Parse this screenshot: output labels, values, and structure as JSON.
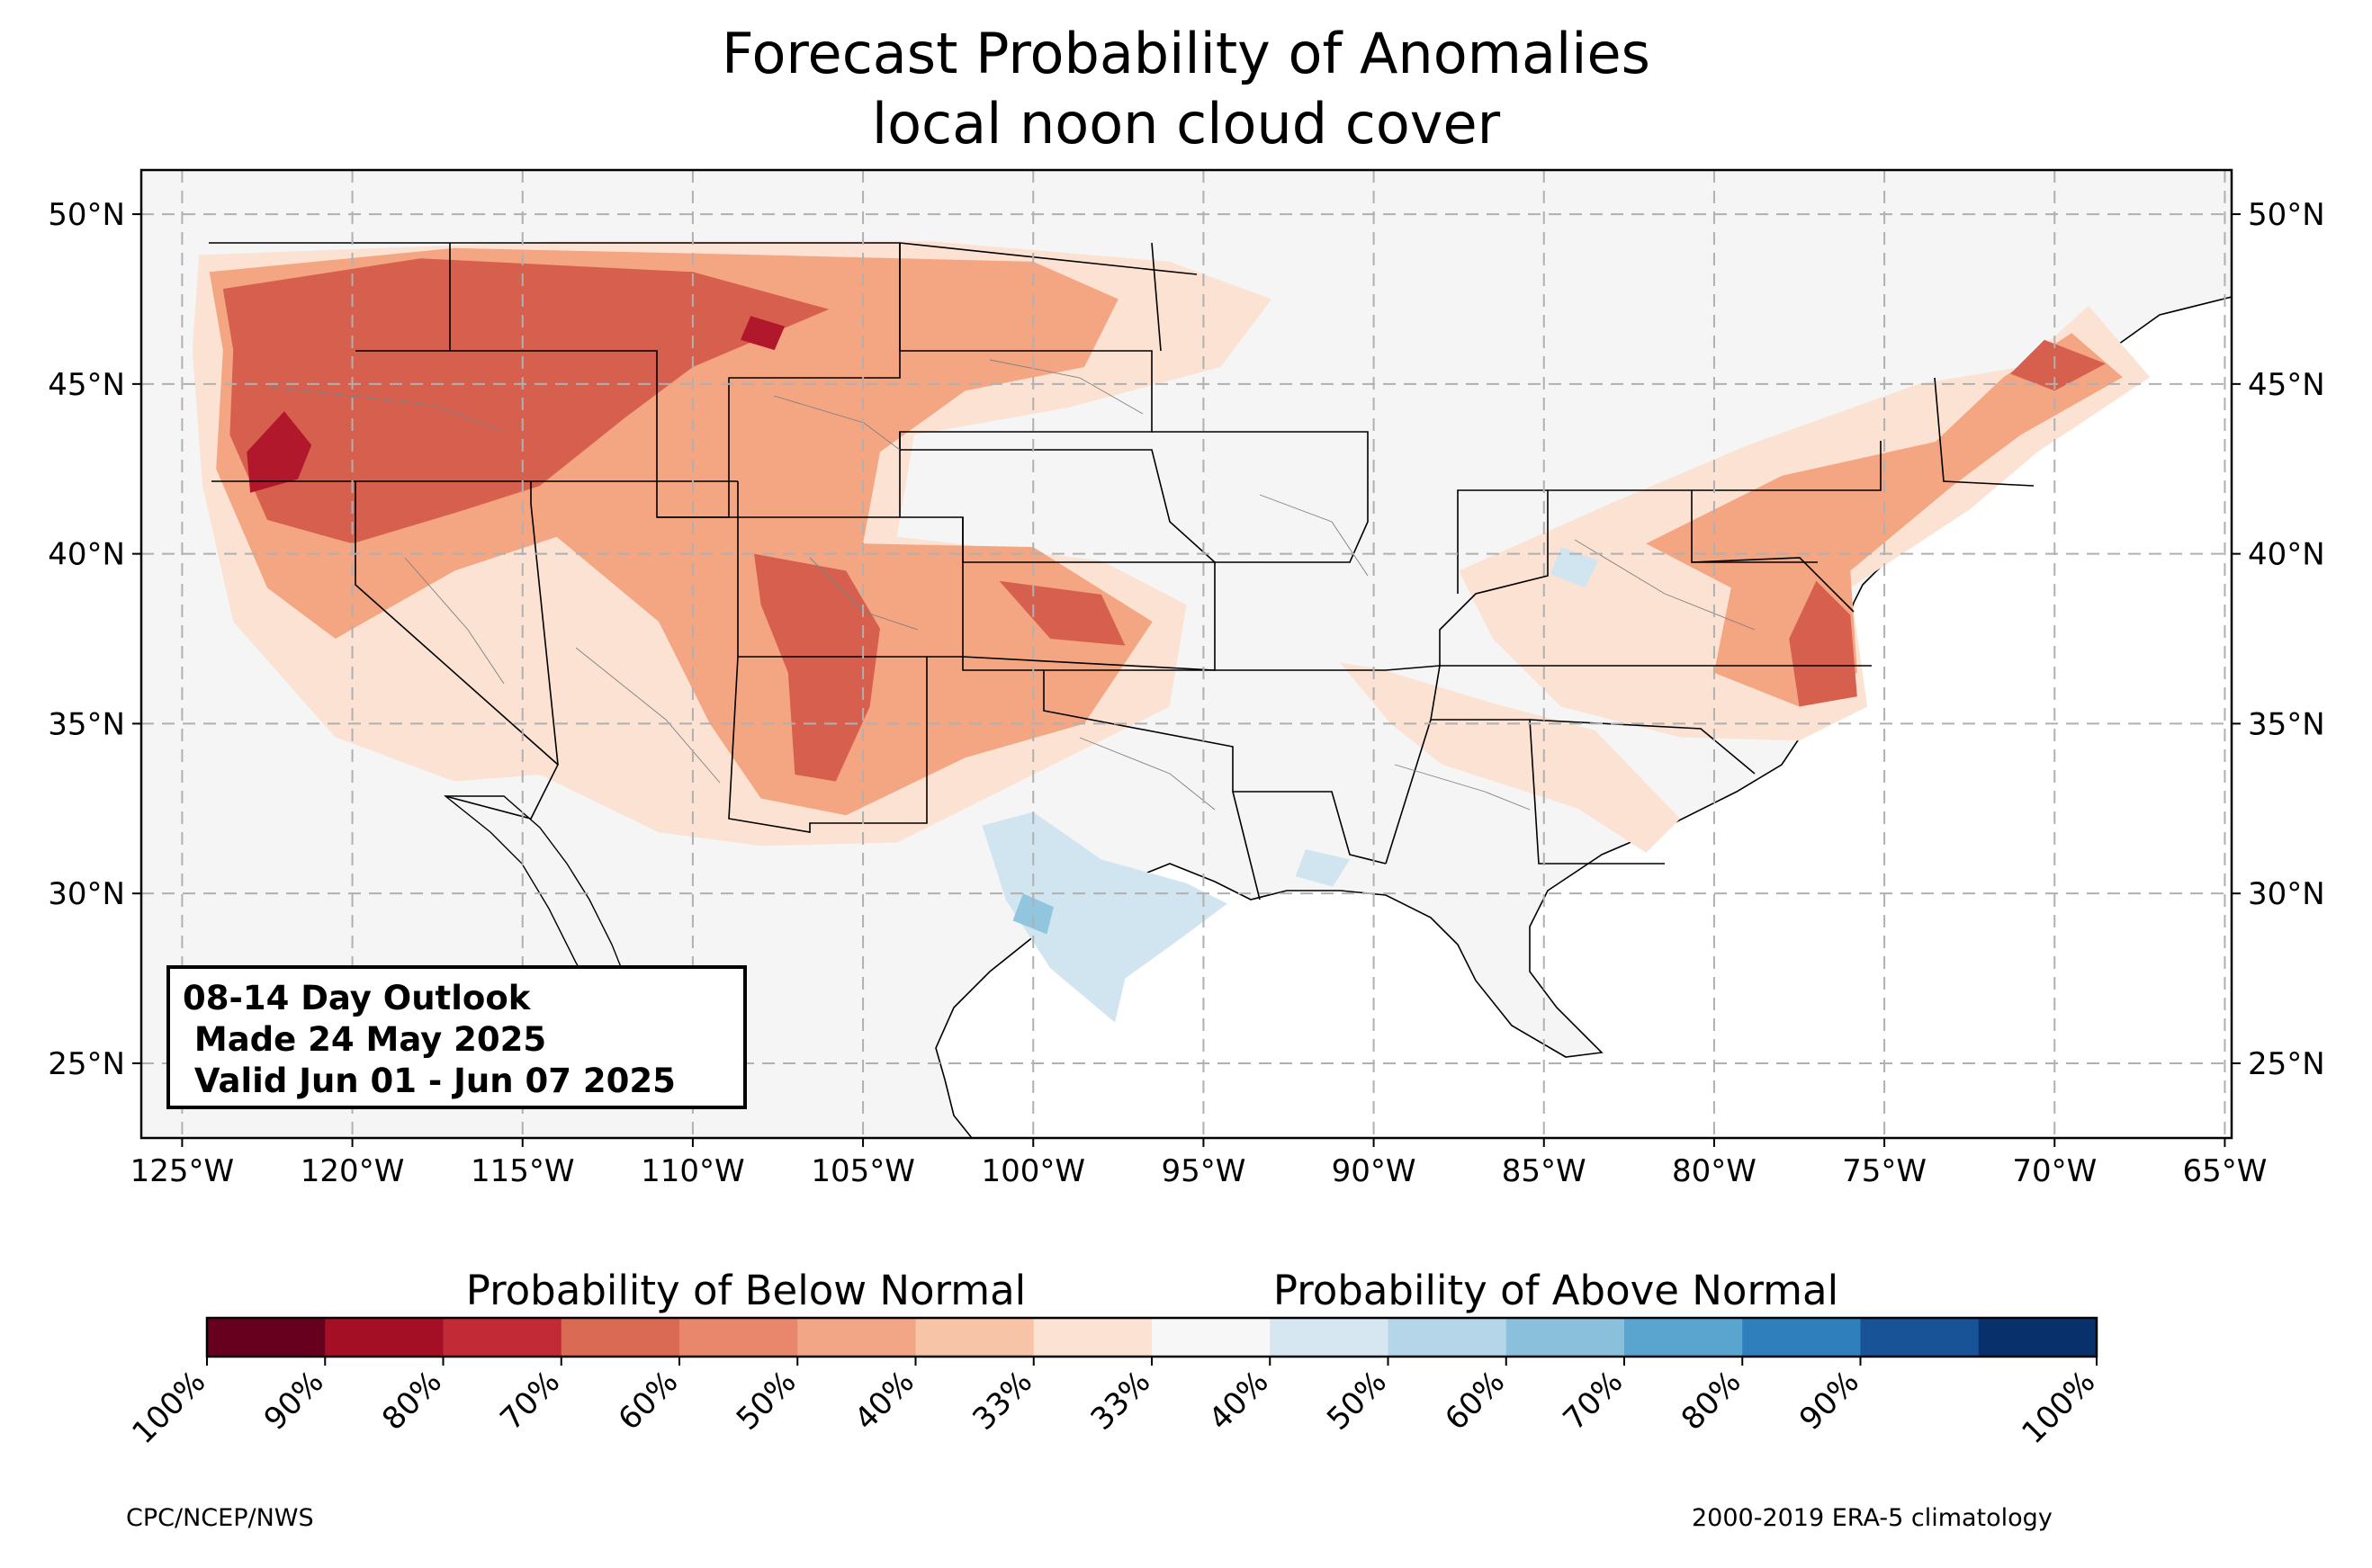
{
  "title": {
    "line1": "Forecast Probability of Anomalies",
    "line2": "local noon cloud cover"
  },
  "outlook": {
    "line1": "08-14 Day Outlook",
    "line2": " Made 24 May 2025",
    "line3": " Valid Jun 01 - Jun 07 2025"
  },
  "map": {
    "lon_range": [
      -126.2,
      -64.8
    ],
    "lat_range": [
      22.8,
      51.3
    ],
    "lon_ticks": [
      {
        "value": -125,
        "label": "125°W"
      },
      {
        "value": -120,
        "label": "120°W"
      },
      {
        "value": -115,
        "label": "115°W"
      },
      {
        "value": -110,
        "label": "110°W"
      },
      {
        "value": -105,
        "label": "105°W"
      },
      {
        "value": -100,
        "label": "100°W"
      },
      {
        "value": -95,
        "label": "95°W"
      },
      {
        "value": -90,
        "label": "90°W"
      },
      {
        "value": -85,
        "label": "85°W"
      },
      {
        "value": -80,
        "label": "80°W"
      },
      {
        "value": -75,
        "label": "75°W"
      },
      {
        "value": -70,
        "label": "70°W"
      },
      {
        "value": -65,
        "label": "65°W"
      }
    ],
    "lat_ticks": [
      {
        "value": 50,
        "label": "50°N"
      },
      {
        "value": 45,
        "label": "45°N"
      },
      {
        "value": 40,
        "label": "40°N"
      },
      {
        "value": 35,
        "label": "35°N"
      },
      {
        "value": 30,
        "label": "30°N"
      },
      {
        "value": 25,
        "label": "25°N"
      }
    ],
    "gridlines": true,
    "land_color": "#f5f5f5",
    "probability_regions": [
      {
        "category": "below",
        "level": "40",
        "color": "#fbe2d3",
        "polygon": [
          [
            -124.5,
            48.8
          ],
          [
            -114,
            49.2
          ],
          [
            -103,
            49.2
          ],
          [
            -96,
            48.6
          ],
          [
            -93,
            47.5
          ],
          [
            -94.5,
            45.5
          ],
          [
            -99,
            44.3
          ],
          [
            -103.5,
            43.5
          ],
          [
            -104,
            40.5
          ],
          [
            -98,
            39.8
          ],
          [
            -95.5,
            38.5
          ],
          [
            -96,
            35.5
          ],
          [
            -100,
            33.5
          ],
          [
            -104,
            31.5
          ],
          [
            -108,
            31.4
          ],
          [
            -111,
            31.8
          ],
          [
            -114.5,
            33.5
          ],
          [
            -117,
            33.3
          ],
          [
            -120.5,
            34.6
          ],
          [
            -123.5,
            38
          ],
          [
            -124.4,
            42
          ],
          [
            -124.7,
            46
          ]
        ]
      },
      {
        "category": "below",
        "level": "40",
        "color": "#fbe2d3",
        "polygon": [
          [
            -69,
            47.3
          ],
          [
            -67.2,
            45.2
          ],
          [
            -70.5,
            43
          ],
          [
            -72.5,
            41.3
          ],
          [
            -76,
            39
          ],
          [
            -75.5,
            35.5
          ],
          [
            -77.5,
            34.5
          ],
          [
            -81,
            34.6
          ],
          [
            -84.5,
            35.5
          ],
          [
            -86.5,
            37.5
          ],
          [
            -87.5,
            39.5
          ],
          [
            -83,
            41.5
          ],
          [
            -79,
            43.2
          ],
          [
            -74,
            45
          ],
          [
            -71,
            45.5
          ]
        ]
      },
      {
        "category": "below",
        "level": "40",
        "color": "#fbe2d3",
        "polygon": [
          [
            -91,
            36.8
          ],
          [
            -89.5,
            35
          ],
          [
            -88,
            33.8
          ],
          [
            -84,
            32.5
          ],
          [
            -82,
            31.2
          ],
          [
            -81,
            32.2
          ],
          [
            -83.5,
            34.8
          ],
          [
            -86.5,
            35.6
          ],
          [
            -89.8,
            36.6
          ]
        ]
      },
      {
        "category": "below",
        "level": "50",
        "color": "#f4a582",
        "polygon": [
          [
            -124.2,
            48.3
          ],
          [
            -117,
            49
          ],
          [
            -108,
            48.8
          ],
          [
            -100,
            48.6
          ],
          [
            -97.5,
            47.5
          ],
          [
            -98.5,
            45.5
          ],
          [
            -102,
            44.8
          ],
          [
            -104.5,
            43
          ],
          [
            -105,
            40.3
          ],
          [
            -100,
            40.2
          ],
          [
            -96.5,
            38
          ],
          [
            -98.5,
            35
          ],
          [
            -102,
            34
          ],
          [
            -105.5,
            32.3
          ],
          [
            -108,
            32.8
          ],
          [
            -109.5,
            35
          ],
          [
            -111,
            38
          ],
          [
            -114,
            40.5
          ],
          [
            -117,
            39.5
          ],
          [
            -120.5,
            37.5
          ],
          [
            -122.5,
            39
          ],
          [
            -124,
            42.5
          ],
          [
            -123.8,
            46
          ]
        ]
      },
      {
        "category": "below",
        "level": "50",
        "color": "#f4a582",
        "polygon": [
          [
            -69.5,
            46.5
          ],
          [
            -68,
            45.2
          ],
          [
            -71,
            43.5
          ],
          [
            -73,
            42
          ],
          [
            -76,
            39.5
          ],
          [
            -75.8,
            36.5
          ],
          [
            -77.5,
            35.5
          ],
          [
            -80,
            36.5
          ],
          [
            -79.5,
            39
          ],
          [
            -82,
            40.3
          ],
          [
            -78,
            42.3
          ],
          [
            -73.5,
            43.3
          ],
          [
            -71.5,
            45.2
          ]
        ]
      },
      {
        "category": "below",
        "level": "60",
        "color": "#d6604d",
        "polygon": [
          [
            -123.8,
            47.8
          ],
          [
            -118,
            48.7
          ],
          [
            -110,
            48.3
          ],
          [
            -106,
            47.2
          ],
          [
            -110,
            45.5
          ],
          [
            -112,
            44
          ],
          [
            -114.5,
            42
          ],
          [
            -117,
            41.2
          ],
          [
            -120,
            40.3
          ],
          [
            -122.5,
            41
          ],
          [
            -123.6,
            43.5
          ],
          [
            -123.5,
            46
          ]
        ]
      },
      {
        "category": "below",
        "level": "60",
        "color": "#d6604d",
        "polygon": [
          [
            -108.2,
            40
          ],
          [
            -105.5,
            39.5
          ],
          [
            -104.5,
            37.8
          ],
          [
            -104.8,
            35.5
          ],
          [
            -105.8,
            33.3
          ],
          [
            -107,
            33.5
          ],
          [
            -107.2,
            36.5
          ],
          [
            -108,
            38.5
          ]
        ]
      },
      {
        "category": "below",
        "level": "60",
        "color": "#d6604d",
        "polygon": [
          [
            -101,
            39.2
          ],
          [
            -98,
            38.8
          ],
          [
            -97.3,
            37.3
          ],
          [
            -99.5,
            37.5
          ]
        ]
      },
      {
        "category": "below",
        "level": "60",
        "color": "#d6604d",
        "polygon": [
          [
            -77,
            39.2
          ],
          [
            -76,
            38.2
          ],
          [
            -75.8,
            35.8
          ],
          [
            -77.5,
            35.5
          ],
          [
            -77.8,
            37.5
          ]
        ]
      },
      {
        "category": "below",
        "level": "60",
        "color": "#d6604d",
        "polygon": [
          [
            -70.3,
            46.3
          ],
          [
            -68.5,
            45.6
          ],
          [
            -70,
            44.8
          ],
          [
            -71.3,
            45.3
          ]
        ]
      },
      {
        "category": "below",
        "level": "70",
        "color": "#b2182b",
        "polygon": [
          [
            -122,
            44.2
          ],
          [
            -121.2,
            43.2
          ],
          [
            -121.6,
            42.2
          ],
          [
            -123,
            41.8
          ],
          [
            -123.1,
            43
          ]
        ]
      },
      {
        "category": "below",
        "level": "70",
        "color": "#b2182b",
        "polygon": [
          [
            -108.3,
            47
          ],
          [
            -107.3,
            46.7
          ],
          [
            -107.6,
            46
          ],
          [
            -108.6,
            46.3
          ]
        ]
      },
      {
        "category": "above",
        "level": "40",
        "color": "#d1e5f0",
        "polygon": [
          [
            -101.5,
            32
          ],
          [
            -100,
            32.4
          ],
          [
            -98,
            31
          ],
          [
            -95.5,
            30.3
          ],
          [
            -94.3,
            29.7
          ],
          [
            -95.5,
            28.8
          ],
          [
            -97.3,
            27.5
          ],
          [
            -97.6,
            26.2
          ],
          [
            -99.5,
            27.8
          ],
          [
            -100.8,
            29.8
          ]
        ]
      },
      {
        "category": "above",
        "level": "40",
        "color": "#d1e5f0",
        "polygon": [
          [
            -84.5,
            40.2
          ],
          [
            -83.4,
            39.8
          ],
          [
            -83.8,
            39
          ],
          [
            -84.8,
            39.4
          ]
        ]
      },
      {
        "category": "above",
        "level": "40",
        "color": "#d1e5f0",
        "polygon": [
          [
            -92,
            31.3
          ],
          [
            -90.7,
            31
          ],
          [
            -91.2,
            30.2
          ],
          [
            -92.3,
            30.5
          ]
        ]
      },
      {
        "category": "above",
        "level": "50",
        "color": "#92c5de",
        "polygon": [
          [
            -100.3,
            30
          ],
          [
            -99.4,
            29.6
          ],
          [
            -99.6,
            28.8
          ],
          [
            -100.6,
            29.2
          ]
        ]
      }
    ]
  },
  "legend": {
    "below_label": "Probability of Below Normal",
    "above_label": "Probability of Above Normal",
    "bins": [
      {
        "color": "#67001f"
      },
      {
        "color": "#a50f26"
      },
      {
        "color": "#c22b36"
      },
      {
        "color": "#da6a53"
      },
      {
        "color": "#e8876c"
      },
      {
        "color": "#f2a686"
      },
      {
        "color": "#f7c4a8"
      },
      {
        "color": "#fbe2d3"
      },
      {
        "color": "#f7f7f7"
      },
      {
        "color": "#d6e7f1"
      },
      {
        "color": "#b5d5e8"
      },
      {
        "color": "#8ac0db"
      },
      {
        "color": "#5aa5cf"
      },
      {
        "color": "#2f7fbc"
      },
      {
        "color": "#185397"
      },
      {
        "color": "#08306b"
      }
    ],
    "tick_labels": [
      "100%",
      "90%",
      "80%",
      "70%",
      "60%",
      "50%",
      "40%",
      "33%",
      "33%",
      "40%",
      "50%",
      "60%",
      "70%",
      "80%",
      "90%",
      "100%"
    ]
  },
  "footer": {
    "left": "CPC/NCEP/NWS",
    "right": "2000-2019 ERA-5 climatology"
  }
}
